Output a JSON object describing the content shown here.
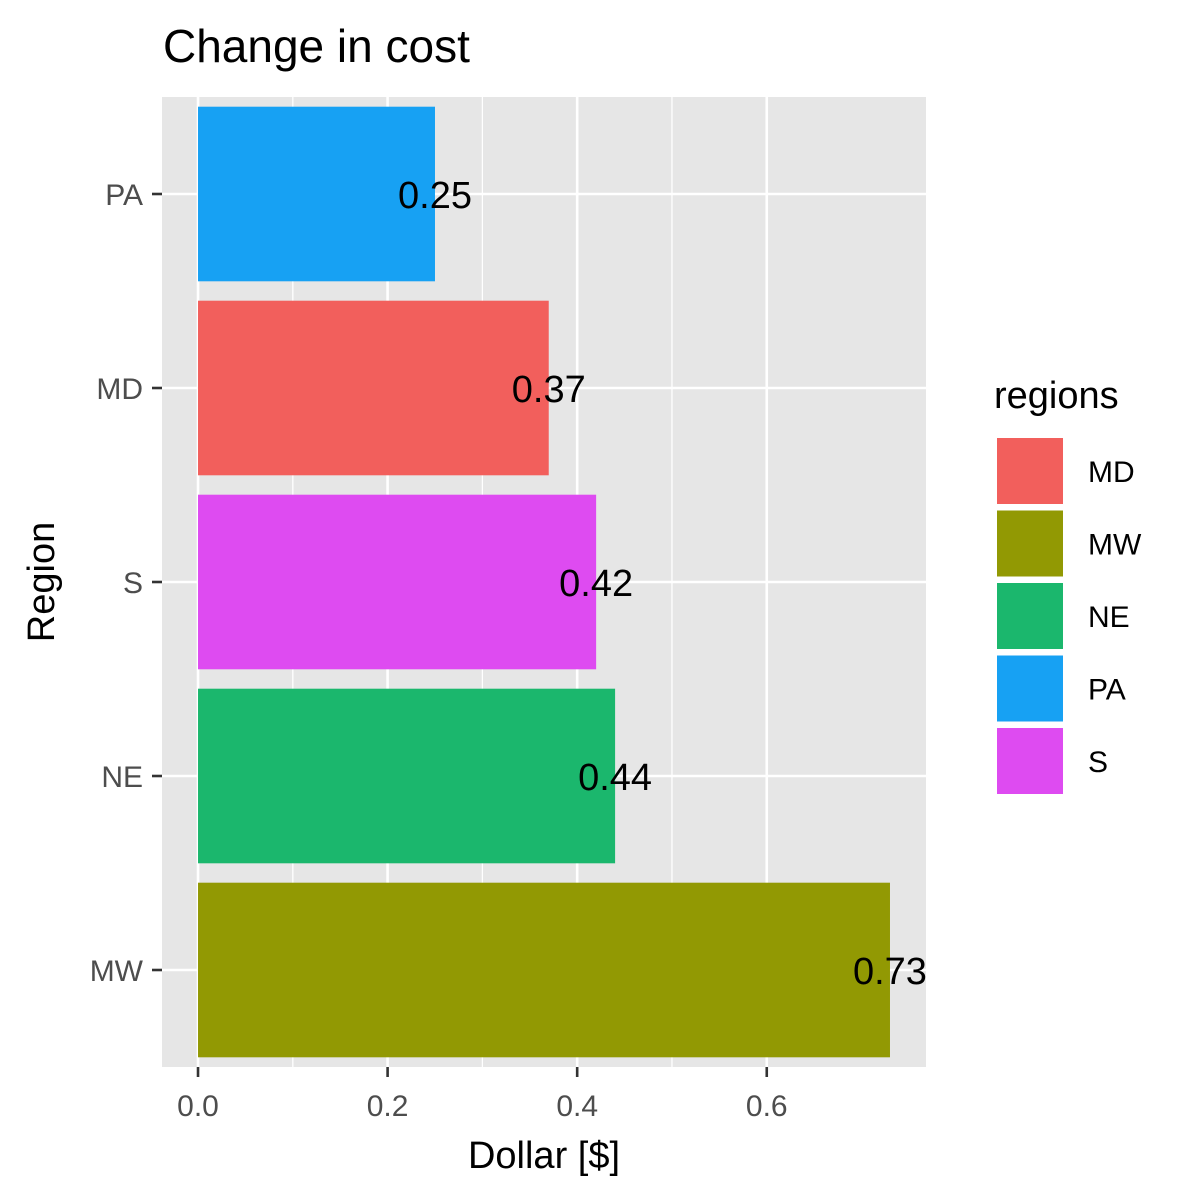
{
  "chart_data": {
    "type": "bar",
    "orientation": "horizontal",
    "title": "Change in cost",
    "xlabel": "Dollar [$]",
    "ylabel": "Region",
    "categories": [
      "PA",
      "MD",
      "S",
      "NE",
      "MW"
    ],
    "values": [
      0.25,
      0.37,
      0.42,
      0.44,
      0.73
    ],
    "data_labels": [
      "0.25",
      "0.37",
      "0.42",
      "0.44",
      "0.73"
    ],
    "colors": {
      "PA": "#17a1f3",
      "MD": "#f25f5c",
      "S": "#de4bf1",
      "NE": "#1bb76d",
      "MW": "#929903"
    },
    "x_ticks": [
      0.0,
      0.2,
      0.4,
      0.6
    ],
    "x_tick_labels": [
      "0.0",
      "0.2",
      "0.4",
      "0.6"
    ],
    "xlim": [
      -0.038,
      0.768
    ],
    "grid": true,
    "panel_background": "#e6e6e6",
    "legend": {
      "title": "regions",
      "position": "right",
      "entries": [
        "MD",
        "MW",
        "NE",
        "PA",
        "S"
      ]
    }
  }
}
